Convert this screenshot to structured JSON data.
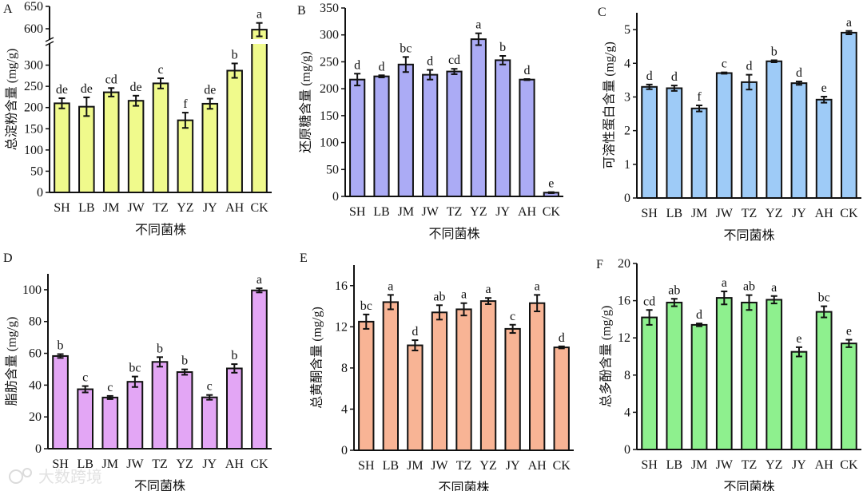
{
  "chart_data": [
    {
      "type": "bar",
      "panel": "A",
      "ylabel": "总淀粉含量 (mg/g)",
      "xlabel": "不同菌株",
      "categories": [
        "SH",
        "LB",
        "JM",
        "JW",
        "TZ",
        "YZ",
        "JY",
        "AH",
        "CK"
      ],
      "values": [
        210,
        202,
        236,
        216,
        257,
        170,
        209,
        287,
        598
      ],
      "errors": [
        12,
        22,
        10,
        12,
        12,
        18,
        12,
        17,
        15
      ],
      "letters": [
        "de",
        "de",
        "cd",
        "de",
        "c",
        "f",
        "de",
        "b",
        "a"
      ],
      "ylim": [
        0,
        650
      ],
      "axis_break": [
        350,
        575
      ],
      "yticks": [
        0,
        50,
        100,
        150,
        200,
        250,
        300,
        600,
        650
      ],
      "color": "#f0fa8c"
    },
    {
      "type": "bar",
      "panel": "B",
      "ylabel": "还原糖含量 (mg/g)",
      "xlabel": "不同菌株",
      "categories": [
        "SH",
        "LB",
        "JM",
        "JW",
        "TZ",
        "YZ",
        "JY",
        "AH",
        "CK"
      ],
      "values": [
        217,
        223,
        245,
        226,
        232,
        292,
        253,
        217,
        7
      ],
      "errors": [
        11,
        2,
        14,
        9,
        5,
        11,
        8,
        1,
        1
      ],
      "letters": [
        "d",
        "d",
        "bc",
        "d",
        "cd",
        "a",
        "b",
        "d",
        "e"
      ],
      "ylim": [
        0,
        350
      ],
      "yticks": [
        0,
        50,
        100,
        150,
        200,
        250,
        300,
        350
      ],
      "color": "#ababf5"
    },
    {
      "type": "bar",
      "panel": "C",
      "ylabel": "可溶性蛋白含量 (mg/g)",
      "xlabel": "不同菌株",
      "categories": [
        "SH",
        "LB",
        "JM",
        "JW",
        "TZ",
        "YZ",
        "JY",
        "AH",
        "CK"
      ],
      "values": [
        3.3,
        3.26,
        2.66,
        3.71,
        3.44,
        4.06,
        3.41,
        2.92,
        4.91
      ],
      "errors": [
        0.07,
        0.08,
        0.09,
        0.02,
        0.22,
        0.03,
        0.05,
        0.09,
        0.05
      ],
      "letters": [
        "d",
        "d",
        "f",
        "c",
        "d",
        "b",
        "d",
        "e",
        "a"
      ],
      "ylim": [
        0,
        5.5
      ],
      "yticks": [
        0,
        1,
        2,
        3,
        4,
        5
      ],
      "color": "#9ecbf7"
    },
    {
      "type": "bar",
      "panel": "D",
      "ylabel": "脂肪含量 (mg/g)",
      "xlabel": "不同菌株",
      "categories": [
        "SH",
        "LB",
        "JM",
        "JW",
        "TZ",
        "YZ",
        "JY",
        "AH",
        "CK"
      ],
      "values": [
        58.3,
        37.4,
        32.2,
        42.1,
        54.6,
        48.2,
        32.3,
        50.5,
        99.6
      ],
      "errors": [
        1.2,
        2.0,
        1.0,
        3.3,
        3.0,
        1.7,
        1.5,
        2.7,
        1.3
      ],
      "letters": [
        "b",
        "c",
        "c",
        "bc",
        "b",
        "b",
        "c",
        "b",
        "a"
      ],
      "ylim": [
        0,
        110
      ],
      "yticks": [
        0,
        20,
        40,
        60,
        80,
        100
      ],
      "color": "#e3a6f5"
    },
    {
      "type": "bar",
      "panel": "E",
      "ylabel": "总黄酮含量 (mg/g)",
      "xlabel": "不同菌株",
      "categories": [
        "SH",
        "LB",
        "JM",
        "JW",
        "TZ",
        "YZ",
        "JY",
        "AH",
        "CK"
      ],
      "values": [
        12.5,
        14.4,
        10.2,
        13.4,
        13.7,
        14.5,
        11.8,
        14.3,
        10.0
      ],
      "errors": [
        0.7,
        0.7,
        0.5,
        0.7,
        0.6,
        0.3,
        0.4,
        0.8,
        0.1
      ],
      "letters": [
        "bc",
        "a",
        "d",
        "ab",
        "a",
        "a",
        "c",
        "a",
        "d"
      ],
      "ylim": [
        0,
        18
      ],
      "yticks": [
        0,
        4,
        8,
        12,
        16
      ],
      "color": "#f8b495"
    },
    {
      "type": "bar",
      "panel": "F",
      "ylabel": "总多酚含量 (mg/g)",
      "xlabel": "不同菌株",
      "categories": [
        "SH",
        "LB",
        "JM",
        "JW",
        "TZ",
        "YZ",
        "JY",
        "AH",
        "CK"
      ],
      "values": [
        14.2,
        15.8,
        13.4,
        16.3,
        15.8,
        16.1,
        10.5,
        14.8,
        11.4
      ],
      "errors": [
        0.8,
        0.4,
        0.15,
        0.7,
        0.8,
        0.4,
        0.5,
        0.6,
        0.4
      ],
      "letters": [
        "cd",
        "ab",
        "d",
        "a",
        "ab",
        "a",
        "e",
        "bc",
        "e"
      ],
      "ylim": [
        0,
        20
      ],
      "yticks": [
        0,
        4,
        8,
        12,
        16,
        20
      ],
      "color": "#8ef08e"
    }
  ],
  "watermark": "大数跨境"
}
